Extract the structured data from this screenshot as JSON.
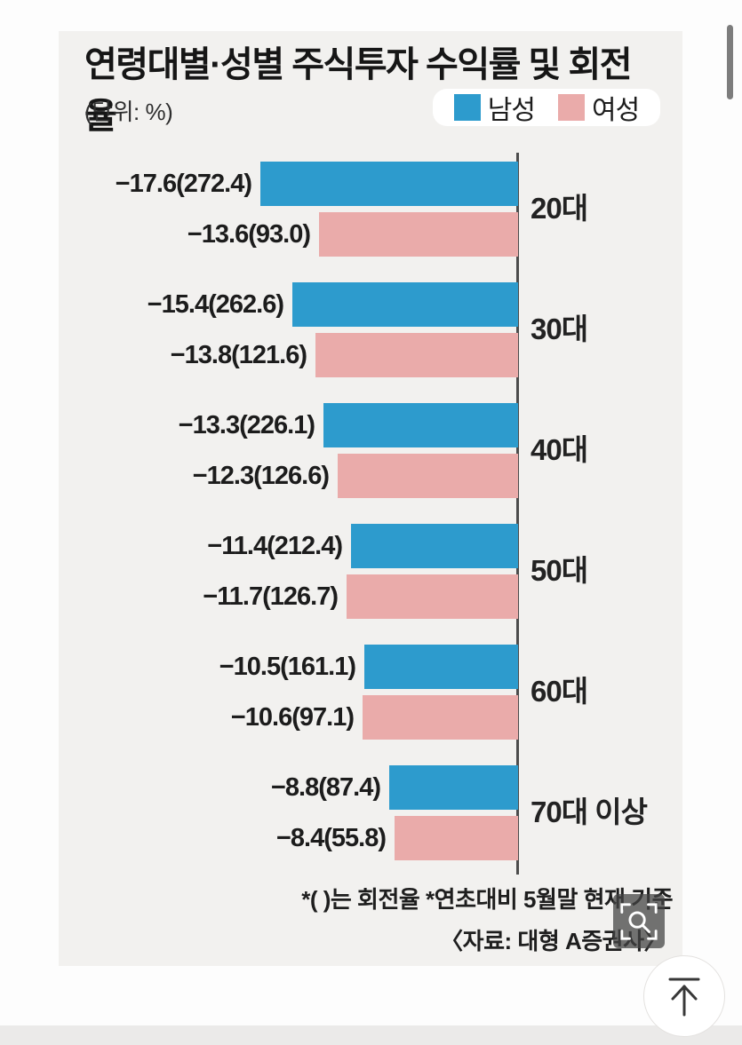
{
  "chart_data": {
    "type": "bar",
    "orientation": "horizontal-right-aligned",
    "title": "연령대별·성별 주식투자 수익률 및 회전율",
    "unit_label": "(단위: %)",
    "categories": [
      "20대",
      "30대",
      "40대",
      "50대",
      "60대",
      "70대 이상"
    ],
    "series": [
      {
        "name": "남성",
        "color": "#2d9bcd",
        "returns": [
          -17.6,
          -15.4,
          -13.3,
          -11.4,
          -10.5,
          -8.8
        ],
        "turnover": [
          272.4,
          262.6,
          226.1,
          212.4,
          161.1,
          87.4
        ]
      },
      {
        "name": "여성",
        "color": "#eaabaa",
        "returns": [
          -13.6,
          -13.8,
          -12.3,
          -11.7,
          -10.6,
          -8.4
        ],
        "turnover": [
          93.0,
          121.6,
          126.6,
          126.7,
          97.1,
          55.8
        ]
      }
    ],
    "legend": [
      {
        "name": "남성",
        "color": "#2d9bcd"
      },
      {
        "name": "여성",
        "color": "#eaabaa"
      }
    ],
    "legend_position": "top-right",
    "grid": false,
    "value_label_format": "return(turnover)",
    "footnotes": [
      "*(  )는 회전율 *연초대비 5월말 현재 기준",
      "〈자료: 대형 A증권사〉"
    ]
  },
  "controls": {
    "zoom_image_button": "image-zoom",
    "scroll_to_top_button": "scroll-to-top"
  }
}
